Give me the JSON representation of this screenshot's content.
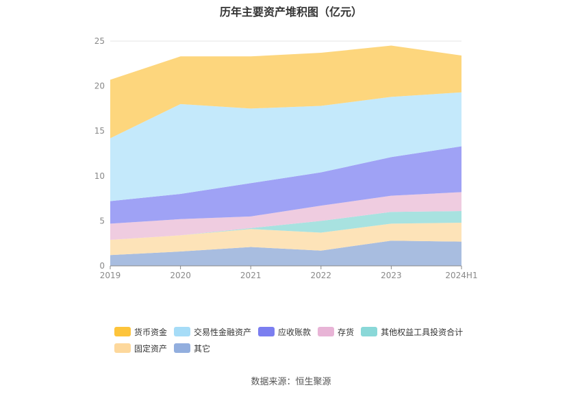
{
  "chart_data": {
    "type": "area",
    "title": "历年主要资产堆积图（亿元）",
    "categories": [
      "2019",
      "2020",
      "2021",
      "2022",
      "2023",
      "2024H1"
    ],
    "ylim": [
      0,
      25
    ],
    "yticks": [
      0,
      5,
      10,
      15,
      20,
      25
    ],
    "stacked": true,
    "grid": true,
    "legend_position": "bottom",
    "series": [
      {
        "name": "其它",
        "color": "#a8bde0",
        "legend_color": "#92aede",
        "values": [
          1.2,
          1.6,
          2.1,
          1.7,
          2.8,
          2.7
        ]
      },
      {
        "name": "固定资产",
        "color": "#fde3b8",
        "legend_color": "#fdd89c",
        "values": [
          1.7,
          1.8,
          2.0,
          2.0,
          1.9,
          2.1
        ]
      },
      {
        "name": "其他权益工具投资合计",
        "color": "#a8e2e0",
        "legend_color": "#8ad8d8",
        "values": [
          0.0,
          0.0,
          0.1,
          1.3,
          1.3,
          1.3
        ]
      },
      {
        "name": "存货",
        "color": "#efcce0",
        "legend_color": "#e8b4d6",
        "values": [
          1.8,
          1.8,
          1.3,
          1.7,
          1.8,
          2.1
        ]
      },
      {
        "name": "应收账款",
        "color": "#9fa2f5",
        "legend_color": "#7b7ef0",
        "values": [
          2.5,
          2.8,
          3.7,
          3.7,
          4.3,
          5.1
        ]
      },
      {
        "name": "交易性金融资产",
        "color": "#c4e9fb",
        "legend_color": "#a6dcf7",
        "values": [
          7.0,
          10.0,
          8.3,
          7.4,
          6.7,
          6.0
        ]
      },
      {
        "name": "货币资金",
        "color": "#fdd67d",
        "legend_color": "#fdc43b",
        "values": [
          6.5,
          5.3,
          5.8,
          5.9,
          5.7,
          4.1
        ]
      }
    ],
    "legend_order": [
      "货币资金",
      "交易性金融资产",
      "应收账款",
      "存货",
      "其他权益工具投资合计",
      "固定资产",
      "其它"
    ]
  },
  "source": "数据来源：恒生聚源"
}
